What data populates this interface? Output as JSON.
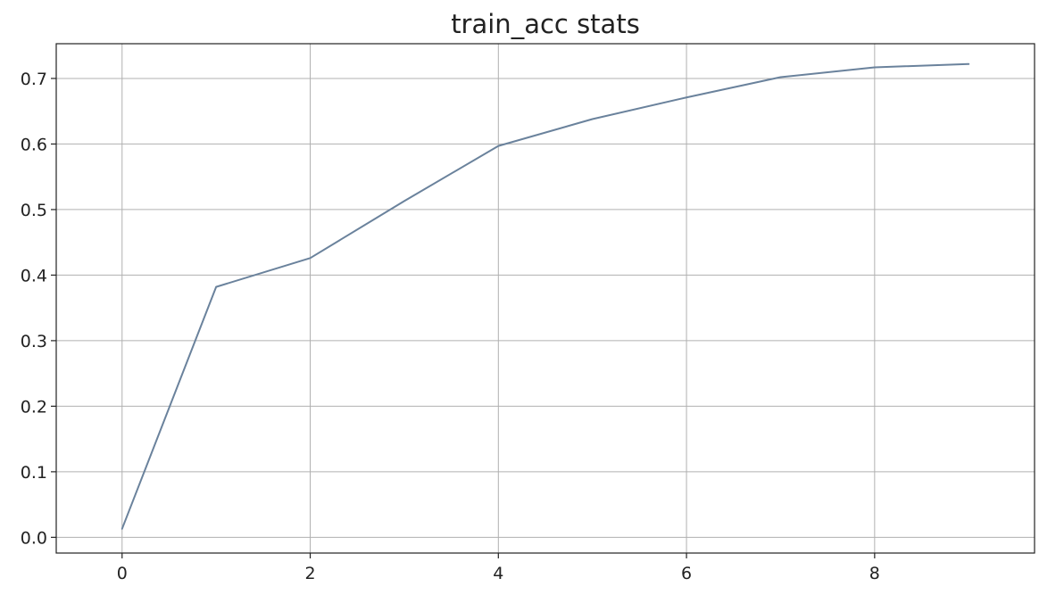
{
  "chart_data": {
    "type": "line",
    "title": "train_acc stats",
    "xlabel": "",
    "ylabel": "",
    "x": [
      0,
      1,
      2,
      3,
      4,
      5,
      6,
      7,
      8,
      9
    ],
    "series": [
      {
        "values": [
          0.013,
          0.382,
          0.426,
          0.513,
          0.597,
          0.638,
          0.671,
          0.702,
          0.717,
          0.722
        ],
        "color": "#6a829c"
      }
    ],
    "xlim": [
      -0.7,
      9.7
    ],
    "ylim": [
      -0.024,
      0.753
    ],
    "xticks": [
      0,
      2,
      4,
      6,
      8
    ],
    "xtick_labels": [
      "0",
      "2",
      "4",
      "6",
      "8"
    ],
    "yticks": [
      0.0,
      0.1,
      0.2,
      0.3,
      0.4,
      0.5,
      0.6,
      0.7
    ],
    "ytick_labels": [
      "0.0",
      "0.1",
      "0.2",
      "0.3",
      "0.4",
      "0.5",
      "0.6",
      "0.7"
    ],
    "grid": true,
    "legend": "none"
  }
}
